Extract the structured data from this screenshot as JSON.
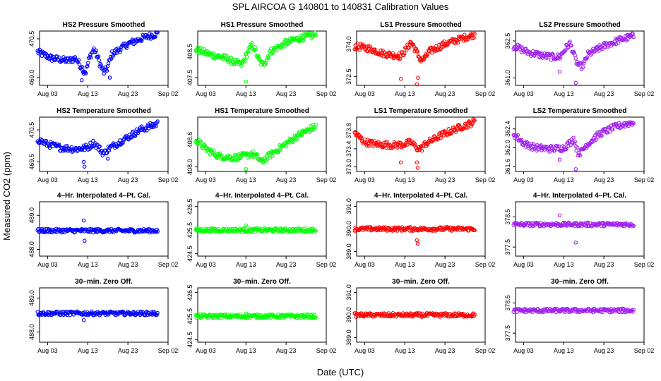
{
  "figure": {
    "title": "SPL   AIRCOA G   140801 to 140831   Calibration Values",
    "xlabel": "Date (UTC)",
    "ylabel": "Measured CO2 (ppm)"
  },
  "chart_data": [
    {
      "type": "scatter",
      "title": "HS2 Pressure Smoothed",
      "color": "#0000ff",
      "x_ticks": [
        "Aug 03",
        "Aug 13",
        "Aug 23",
        "Sep 02"
      ],
      "x_range_days": [
        1,
        33
      ],
      "ylim": [
        468.7,
        470.8
      ],
      "y_ticks": [
        "469.0",
        "470.5"
      ],
      "y_tick_values": [
        469.0,
        470.5
      ],
      "shape": "pressure",
      "trend": [
        [
          0.5,
          470.0
        ],
        [
          4,
          469.75
        ],
        [
          8,
          469.65
        ],
        [
          10,
          469.75
        ],
        [
          11.5,
          469.4
        ],
        [
          12.5,
          469.2
        ],
        [
          13.5,
          469.8
        ],
        [
          14.5,
          470.1
        ],
        [
          15.2,
          469.9
        ],
        [
          16,
          469.55
        ],
        [
          17,
          469.2
        ],
        [
          17.8,
          469.35
        ],
        [
          19,
          469.9
        ],
        [
          23,
          470.3
        ],
        [
          27,
          470.55
        ],
        [
          30.5,
          470.7
        ]
      ],
      "outliers": [
        [
          11.5,
          468.9
        ],
        [
          12,
          469.15
        ],
        [
          18.5,
          469.0
        ]
      ]
    },
    {
      "type": "scatter",
      "title": "HS1 Pressure Smoothed",
      "color": "#00ff00",
      "x_ticks": [
        "Aug 03",
        "Aug 13",
        "Aug 23",
        "Sep 02"
      ],
      "x_range_days": [
        1,
        33
      ],
      "ylim": [
        407.2,
        409.3
      ],
      "y_ticks": [
        "407.5",
        "408.5"
      ],
      "y_tick_values": [
        407.5,
        408.5
      ],
      "shape": "pressure",
      "trend": [
        [
          0.5,
          408.6
        ],
        [
          4,
          408.4
        ],
        [
          8,
          408.25
        ],
        [
          10,
          408.1
        ],
        [
          12,
          408.0
        ],
        [
          13.5,
          408.5
        ],
        [
          14.5,
          408.75
        ],
        [
          15.2,
          408.6
        ],
        [
          16,
          408.25
        ],
        [
          17,
          408.0
        ],
        [
          18,
          408.15
        ],
        [
          19,
          408.5
        ],
        [
          23,
          408.85
        ],
        [
          27,
          409.05
        ],
        [
          30.5,
          409.15
        ]
      ],
      "outliers": [
        [
          13,
          407.35
        ]
      ]
    },
    {
      "type": "scatter",
      "title": "LS1 Pressure Smoothed",
      "color": "#ff0000",
      "x_ticks": [
        "Aug 03",
        "Aug 13",
        "Aug 23",
        "Sep 02"
      ],
      "x_range_days": [
        1,
        33
      ],
      "ylim": [
        372.1,
        374.6
      ],
      "y_ticks": [
        "372.5",
        "374.0"
      ],
      "y_tick_values": [
        372.5,
        374.0
      ],
      "shape": "pressure",
      "trend": [
        [
          0.5,
          373.9
        ],
        [
          4,
          373.8
        ],
        [
          8,
          373.55
        ],
        [
          10,
          373.5
        ],
        [
          12,
          373.45
        ],
        [
          13.5,
          373.8
        ],
        [
          14.5,
          374.1
        ],
        [
          15.2,
          373.9
        ],
        [
          16,
          373.6
        ],
        [
          17,
          373.25
        ],
        [
          18,
          373.35
        ],
        [
          19,
          373.65
        ],
        [
          23,
          374.0
        ],
        [
          27,
          374.25
        ],
        [
          30.5,
          374.45
        ]
      ],
      "outliers": [
        [
          12,
          372.4
        ],
        [
          16,
          372.15
        ],
        [
          16.3,
          372.45
        ]
      ]
    },
    {
      "type": "scatter",
      "title": "LS2 Pressure Smoothed",
      "color": "#a020f0",
      "x_ticks": [
        "Aug 03",
        "Aug 13",
        "Aug 23",
        "Sep 02"
      ],
      "x_range_days": [
        1,
        33
      ],
      "ylim": [
        360.7,
        362.9
      ],
      "y_ticks": [
        "361.0",
        "362.5"
      ],
      "y_tick_values": [
        361.0,
        362.5
      ],
      "shape": "pressure",
      "trend": [
        [
          0.5,
          362.3
        ],
        [
          4,
          362.05
        ],
        [
          8,
          361.9
        ],
        [
          10,
          361.85
        ],
        [
          12,
          361.85
        ],
        [
          13.5,
          362.2
        ],
        [
          14.5,
          362.4
        ],
        [
          15.2,
          362.15
        ],
        [
          16,
          361.7
        ],
        [
          17,
          361.45
        ],
        [
          18,
          361.55
        ],
        [
          19,
          361.95
        ],
        [
          23,
          362.3
        ],
        [
          27,
          362.55
        ],
        [
          30.5,
          362.7
        ]
      ],
      "outliers": [
        [
          12,
          361.25
        ],
        [
          16,
          360.8
        ]
      ]
    },
    {
      "type": "scatter",
      "title": "HS2 Temperature Smoothed",
      "color": "#0000ff",
      "x_ticks": [
        "Aug 03",
        "Aug 13",
        "Aug 23",
        "Sep 02"
      ],
      "x_range_days": [
        1,
        33
      ],
      "ylim": [
        469.2,
        470.9
      ],
      "y_ticks": [
        "469.5",
        "470.5"
      ],
      "y_tick_values": [
        469.5,
        470.5
      ],
      "shape": "temp",
      "trend": [
        [
          0.5,
          470.2
        ],
        [
          3,
          470.05
        ],
        [
          6,
          469.95
        ],
        [
          10,
          469.9
        ],
        [
          13,
          469.95
        ],
        [
          14.5,
          470.1
        ],
        [
          16,
          469.9
        ],
        [
          17,
          469.75
        ],
        [
          18,
          469.9
        ],
        [
          22,
          470.2
        ],
        [
          26,
          470.5
        ],
        [
          30.5,
          470.7
        ]
      ],
      "outliers": [
        [
          12,
          469.5
        ],
        [
          12.2,
          469.35
        ],
        [
          18,
          469.6
        ]
      ]
    },
    {
      "type": "scatter",
      "title": "HS1 Temperature Smoothed",
      "color": "#00ff00",
      "x_ticks": [
        "Aug 03",
        "Aug 13",
        "Aug 23",
        "Sep 02"
      ],
      "x_range_days": [
        1,
        33
      ],
      "ylim": [
        407.9,
        409.1
      ],
      "y_ticks": [
        "408.0",
        "408.6"
      ],
      "y_tick_values": [
        408.0,
        408.6
      ],
      "shape": "temp",
      "trend": [
        [
          0.5,
          408.6
        ],
        [
          3,
          408.4
        ],
        [
          6,
          408.25
        ],
        [
          10,
          408.2
        ],
        [
          13,
          408.25
        ],
        [
          14.5,
          408.3
        ],
        [
          16,
          408.2
        ],
        [
          17,
          408.1
        ],
        [
          18,
          408.2
        ],
        [
          22,
          408.45
        ],
        [
          26,
          408.7
        ],
        [
          30.5,
          408.9
        ]
      ],
      "outliers": [
        [
          13,
          407.95
        ]
      ]
    },
    {
      "type": "scatter",
      "title": "LS1 Temperature Smoothed",
      "color": "#ff0000",
      "x_ticks": [
        "Aug 03",
        "Aug 13",
        "Aug 23",
        "Sep 02"
      ],
      "x_range_days": [
        1,
        33
      ],
      "ylim": [
        372.9,
        374.1
      ],
      "y_ticks": [
        "373.0",
        "373.4",
        "373.8"
      ],
      "y_tick_values": [
        373.0,
        373.4,
        373.8
      ],
      "shape": "temp",
      "trend": [
        [
          0.5,
          373.75
        ],
        [
          3,
          373.55
        ],
        [
          6,
          373.5
        ],
        [
          10,
          373.48
        ],
        [
          13,
          373.5
        ],
        [
          14.5,
          373.55
        ],
        [
          16,
          373.42
        ],
        [
          17,
          373.4
        ],
        [
          18,
          373.5
        ],
        [
          22,
          373.7
        ],
        [
          26,
          373.85
        ],
        [
          30.5,
          374.0
        ]
      ],
      "outliers": [
        [
          12,
          373.1
        ],
        [
          16,
          373.1
        ],
        [
          16.2,
          372.98
        ]
      ]
    },
    {
      "type": "scatter",
      "title": "LS2 Temperature Smoothed",
      "color": "#a020f0",
      "x_ticks": [
        "Aug 03",
        "Aug 13",
        "Aug 23",
        "Sep 02"
      ],
      "x_range_days": [
        1,
        33
      ],
      "ylim": [
        361.5,
        362.65
      ],
      "y_ticks": [
        "361.6",
        "362.0",
        "362.4"
      ],
      "y_tick_values": [
        361.6,
        362.0,
        362.4
      ],
      "shape": "temp",
      "trend": [
        [
          0.5,
          362.3
        ],
        [
          3,
          362.1
        ],
        [
          6,
          362.0
        ],
        [
          10,
          361.98
        ],
        [
          13,
          362.0
        ],
        [
          14.5,
          362.1
        ],
        [
          15.5,
          362.2
        ],
        [
          16.5,
          361.9
        ],
        [
          17.2,
          361.9
        ],
        [
          18.5,
          362.05
        ],
        [
          22,
          362.3
        ],
        [
          26,
          362.45
        ],
        [
          30.5,
          362.55
        ]
      ],
      "outliers": [
        [
          12,
          361.75
        ],
        [
          16,
          361.55
        ]
      ]
    },
    {
      "type": "scatter",
      "title": "4–Hr. Interpolated 4–Pt. Cal.",
      "color": "#0000ff",
      "x_ticks": [
        "Aug 03",
        "Aug 13",
        "Aug 23",
        "Sep 02"
      ],
      "x_range_days": [
        1,
        33
      ],
      "ylim": [
        487.8,
        489.4
      ],
      "y_ticks": [
        "488.0",
        "489.0"
      ],
      "y_tick_values": [
        488.0,
        489.0
      ],
      "shape": "flat",
      "trend": [
        [
          0.5,
          488.55
        ],
        [
          30.5,
          488.55
        ]
      ],
      "outliers": [
        [
          12,
          488.85
        ],
        [
          12.2,
          488.25
        ]
      ]
    },
    {
      "type": "scatter",
      "title": "4–Hr. Interpolated 4–Pt. Cal.",
      "color": "#00ff00",
      "x_ticks": [
        "Aug 03",
        "Aug 13",
        "Aug 23",
        "Sep 02"
      ],
      "x_range_days": [
        1,
        33
      ],
      "ylim": [
        424.4,
        426.7
      ],
      "y_ticks": [
        "424.5",
        "425.5",
        "426.5"
      ],
      "y_tick_values": [
        424.5,
        425.5,
        426.5
      ],
      "shape": "flat",
      "trend": [
        [
          0.5,
          425.5
        ],
        [
          30.5,
          425.5
        ]
      ],
      "outliers": [
        [
          13,
          425.7
        ]
      ]
    },
    {
      "type": "scatter",
      "title": "4–Hr. Interpolated 4–Pt. Cal.",
      "color": "#ff0000",
      "x_ticks": [
        "Aug 03",
        "Aug 13",
        "Aug 23",
        "Sep 02"
      ],
      "x_range_days": [
        1,
        33
      ],
      "ylim": [
        388.8,
        391.2
      ],
      "y_ticks": [
        "389.0",
        "390.0",
        "391.0"
      ],
      "y_tick_values": [
        389.0,
        390.0,
        391.0
      ],
      "shape": "flat",
      "trend": [
        [
          0.5,
          390.0
        ],
        [
          30.5,
          390.0
        ]
      ],
      "outliers": [
        [
          16,
          389.5
        ],
        [
          16.2,
          389.35
        ]
      ]
    },
    {
      "type": "scatter",
      "title": "4–Hr. Interpolated 4–Pt. Cal.",
      "color": "#a020f0",
      "x_ticks": [
        "Aug 03",
        "Aug 13",
        "Aug 23",
        "Sep 02"
      ],
      "x_range_days": [
        1,
        33
      ],
      "ylim": [
        377.2,
        379.0
      ],
      "y_ticks": [
        "377.5",
        "378.5"
      ],
      "y_tick_values": [
        377.5,
        378.5
      ],
      "shape": "flat",
      "trend": [
        [
          0.5,
          378.25
        ],
        [
          30.5,
          378.25
        ]
      ],
      "outliers": [
        [
          12,
          378.55
        ],
        [
          16,
          377.65
        ]
      ]
    },
    {
      "type": "scatter",
      "title": "30–min. Zero Off.",
      "color": "#0000ff",
      "x_ticks": [
        "Aug 03",
        "Aug 13",
        "Aug 23",
        "Sep 02"
      ],
      "x_range_days": [
        1,
        33
      ],
      "ylim": [
        487.7,
        489.3
      ],
      "y_ticks": [
        "488.0",
        "489.0"
      ],
      "y_tick_values": [
        488.0,
        489.0
      ],
      "shape": "flat",
      "trend": [
        [
          0.5,
          488.55
        ],
        [
          30.5,
          488.55
        ]
      ],
      "outliers": [
        [
          12,
          488.35
        ]
      ]
    },
    {
      "type": "scatter",
      "title": "30–min. Zero Off.",
      "color": "#00ff00",
      "x_ticks": [
        "Aug 03",
        "Aug 13",
        "Aug 23",
        "Sep 02"
      ],
      "x_range_days": [
        1,
        33
      ],
      "ylim": [
        424.4,
        426.7
      ],
      "y_ticks": [
        "424.5",
        "425.5",
        "426.5"
      ],
      "y_tick_values": [
        424.5,
        425.5,
        426.5
      ],
      "shape": "flat",
      "trend": [
        [
          0.5,
          425.5
        ],
        [
          30.5,
          425.5
        ]
      ],
      "outliers": [
        [
          13,
          425.62
        ]
      ]
    },
    {
      "type": "scatter",
      "title": "30–min. Zero Off.",
      "color": "#ff0000",
      "x_ticks": [
        "Aug 03",
        "Aug 13",
        "Aug 23",
        "Sep 02"
      ],
      "x_range_days": [
        1,
        33
      ],
      "ylim": [
        388.8,
        391.2
      ],
      "y_ticks": [
        "389.0",
        "390.0",
        "391.0"
      ],
      "y_tick_values": [
        389.0,
        390.0,
        391.0
      ],
      "shape": "flat",
      "trend": [
        [
          0.5,
          390.0
        ],
        [
          30.5,
          390.0
        ]
      ],
      "outliers": []
    },
    {
      "type": "scatter",
      "title": "30–min. Zero Off.",
      "color": "#a020f0",
      "x_ticks": [
        "Aug 03",
        "Aug 13",
        "Aug 23",
        "Sep 02"
      ],
      "x_range_days": [
        1,
        33
      ],
      "ylim": [
        377.2,
        379.0
      ],
      "y_ticks": [
        "377.5",
        "378.5"
      ],
      "y_tick_values": [
        377.5,
        378.5
      ],
      "shape": "flat",
      "trend": [
        [
          0.5,
          378.25
        ],
        [
          30.5,
          378.25
        ]
      ],
      "outliers": []
    }
  ]
}
